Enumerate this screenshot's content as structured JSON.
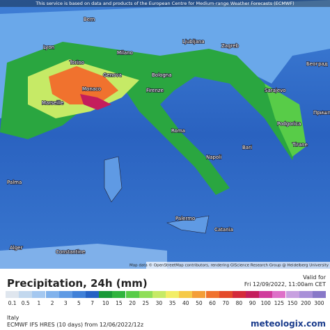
{
  "header": {
    "notice": "This service is based on data and products of the European Centre for Medium-range Weather Forecasts (ECMWF)"
  },
  "map": {
    "attribution": "Map data © OpenStreetMap contributors, rendering GIScience Research Group @ Heidelberg University",
    "cities": [
      "Bern",
      "Lyon",
      "Torino",
      "Milano",
      "Monaco",
      "Genova",
      "Marseille",
      "Bologna",
      "Firenze",
      "Ljubljana",
      "Zagreb",
      "Београд",
      "Sarajevo",
      "Podgorica",
      "Приштина",
      "Tirane",
      "Roma",
      "Napoli",
      "Bari",
      "Palma",
      "Palermo",
      "Catania",
      "Alger",
      "Constantine"
    ]
  },
  "legend": {
    "title": "Precipitation, 24h (mm)",
    "valid_label": "Valid for",
    "valid_time": "Fri 12/09/2022, 11:00am CET",
    "scale": [
      {
        "label": "0.1",
        "color": "#dfe6ee"
      },
      {
        "label": "0.5",
        "color": "#c2d8ee"
      },
      {
        "label": "1",
        "color": "#a4c8f0"
      },
      {
        "label": "2",
        "color": "#80b2ec"
      },
      {
        "label": "3",
        "color": "#5f9ae4"
      },
      {
        "label": "5",
        "color": "#3f80d8"
      },
      {
        "label": "7",
        "color": "#2562c4"
      },
      {
        "label": "10",
        "color": "#1a9a38"
      },
      {
        "label": "15",
        "color": "#30b43e"
      },
      {
        "label": "20",
        "color": "#58cc48"
      },
      {
        "label": "25",
        "color": "#90de58"
      },
      {
        "label": "30",
        "color": "#c6ea66"
      },
      {
        "label": "35",
        "color": "#f2ee66"
      },
      {
        "label": "40",
        "color": "#f6ca48"
      },
      {
        "label": "50",
        "color": "#f49e38"
      },
      {
        "label": "60",
        "color": "#f0722e"
      },
      {
        "label": "70",
        "color": "#e44a2a"
      },
      {
        "label": "80",
        "color": "#d42a3a"
      },
      {
        "label": "90",
        "color": "#c41e5c"
      },
      {
        "label": "100",
        "color": "#d03c9c"
      },
      {
        "label": "125",
        "color": "#de70c8"
      },
      {
        "label": "150",
        "color": "#c8a0e0"
      },
      {
        "label": "200",
        "color": "#a890d8"
      },
      {
        "label": "300",
        "color": "#8878c8"
      }
    ]
  },
  "footer": {
    "region": "Italy",
    "model": "ECMWF IFS HRES (10 days) from 12/06/2022/12z",
    "brand": "meteologix.com"
  }
}
